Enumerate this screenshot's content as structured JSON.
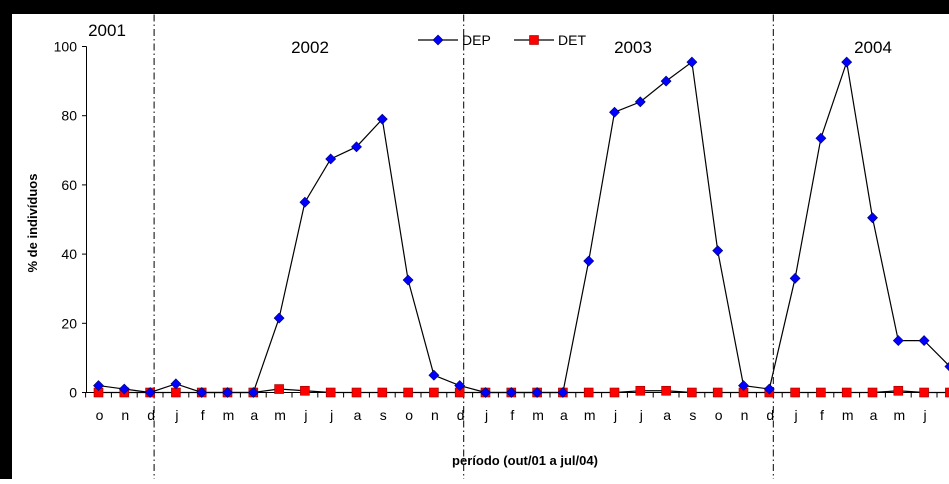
{
  "chart_data": {
    "type": "line",
    "title": "",
    "xlabel": "período (out/01 a jul/04)",
    "ylabel": "% de indivíduos",
    "ylim": [
      0,
      100
    ],
    "yticks": [
      0,
      20,
      40,
      60,
      80,
      100
    ],
    "grid": false,
    "legend_position": "top-center",
    "categories": [
      "o",
      "n",
      "d",
      "j",
      "f",
      "m",
      "a",
      "m",
      "j",
      "j",
      "a",
      "s",
      "o",
      "n",
      "d",
      "j",
      "f",
      "m",
      "a",
      "m",
      "j",
      "j",
      "a",
      "s",
      "o",
      "n",
      "d",
      "j",
      "f",
      "m",
      "a",
      "m",
      "j",
      "j"
    ],
    "year_labels": [
      {
        "label": "2001",
        "start_index": 0
      },
      {
        "label": "2002",
        "start_index": 3
      },
      {
        "label": "2003",
        "start_index": 15
      },
      {
        "label": "2004",
        "start_index": 27
      }
    ],
    "year_boundaries_after_index": [
      2,
      14,
      26
    ],
    "series": [
      {
        "name": "DEP",
        "color": "#0000FF",
        "marker": "diamond",
        "values": [
          2,
          1,
          0,
          2.5,
          0,
          0,
          0,
          21.5,
          55,
          67.5,
          71,
          79,
          32.5,
          5,
          2,
          0,
          0,
          0,
          0,
          38,
          81,
          84,
          90,
          95.5,
          41,
          2,
          1,
          33,
          73.5,
          95.5,
          50.5,
          15,
          15,
          7.5
        ]
      },
      {
        "name": "DET",
        "color": "#FF0000",
        "marker": "square",
        "values": [
          0,
          0,
          0,
          0,
          0,
          0,
          0,
          1,
          0.5,
          0,
          0,
          0,
          0,
          0,
          0,
          0,
          0,
          0,
          0,
          0,
          0,
          0.5,
          0.5,
          0,
          0,
          0,
          0,
          0,
          0,
          0,
          0,
          0.5,
          0,
          0
        ]
      }
    ]
  }
}
